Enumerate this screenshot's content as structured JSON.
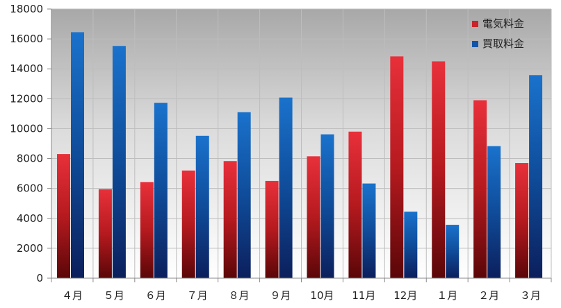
{
  "chart_data": {
    "type": "bar",
    "title": "",
    "xlabel": "",
    "ylabel": "",
    "categories": [
      "４月",
      "５月",
      "６月",
      "７月",
      "８月",
      "９月",
      "10月",
      "11月",
      "12月",
      "１月",
      "２月",
      "３月"
    ],
    "series": [
      {
        "name": "電気料金",
        "color": "#cc1f1f",
        "values": [
          8300,
          5950,
          6430,
          7200,
          7830,
          6500,
          8150,
          9800,
          14830,
          14500,
          11900,
          7700
        ]
      },
      {
        "name": "買取料金",
        "color": "#1155a8",
        "values": [
          16450,
          15530,
          11730,
          9520,
          11100,
          12080,
          9620,
          6330,
          4450,
          3570,
          8830,
          13580
        ]
      }
    ],
    "ylim": [
      0,
      18000
    ],
    "yticks": [
      "0",
      "2000",
      "4000",
      "6000",
      "8000",
      "10000",
      "12000",
      "14000",
      "16000",
      "18000"
    ],
    "grid": true,
    "legend_position": "top-right"
  }
}
